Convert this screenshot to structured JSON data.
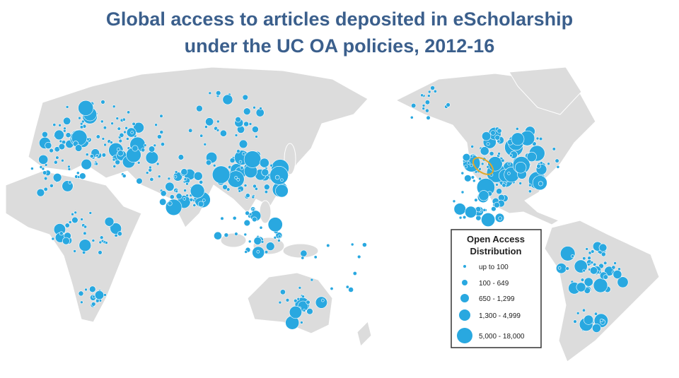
{
  "title": [
    "Global access to articles deposited in eScholarship",
    "under the UC OA policies, 2012-16"
  ],
  "legend": {
    "title": [
      "Open Access",
      "Distribution"
    ],
    "items": [
      "up to 100",
      "100 - 649",
      "650 - 1,299",
      "1,300 - 4,999",
      "5,000 - 18,000"
    ]
  }
}
